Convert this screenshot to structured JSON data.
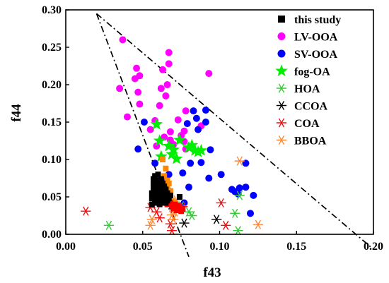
{
  "chart_data": {
    "type": "scatter",
    "title": "",
    "xlabel": "f43",
    "ylabel": "f44",
    "xlim": [
      0.0,
      0.2
    ],
    "ylim": [
      0.0,
      0.3
    ],
    "x_ticks": [
      "0.00",
      "0.05",
      "0.10",
      "0.15",
      "0.20"
    ],
    "y_ticks": [
      "0.00",
      "0.05",
      "0.10",
      "0.15",
      "0.20",
      "0.25",
      "0.30"
    ],
    "x_tick_values": [
      0.0,
      0.05,
      0.1,
      0.15,
      0.2
    ],
    "y_tick_values": [
      0.0,
      0.05,
      0.1,
      0.15,
      0.2,
      0.25,
      0.3
    ],
    "grid": false,
    "legend_position": "top-right",
    "triangle": {
      "apex": [
        0.02,
        0.295
      ],
      "left_end": [
        0.08,
        -0.03
      ],
      "right_end": [
        0.2,
        -0.02
      ]
    },
    "series": [
      {
        "name": "this study",
        "marker": "square",
        "color": "#000000",
        "points": [
          [
            0.056,
            0.04
          ],
          [
            0.056,
            0.048
          ],
          [
            0.056,
            0.055
          ],
          [
            0.057,
            0.062
          ],
          [
            0.057,
            0.068
          ],
          [
            0.057,
            0.074
          ],
          [
            0.058,
            0.045
          ],
          [
            0.058,
            0.052
          ],
          [
            0.058,
            0.06
          ],
          [
            0.058,
            0.078
          ],
          [
            0.059,
            0.042
          ],
          [
            0.059,
            0.05
          ],
          [
            0.059,
            0.057
          ],
          [
            0.059,
            0.065
          ],
          [
            0.059,
            0.072
          ],
          [
            0.06,
            0.046
          ],
          [
            0.06,
            0.054
          ],
          [
            0.06,
            0.061
          ],
          [
            0.06,
            0.069
          ],
          [
            0.06,
            0.08
          ],
          [
            0.061,
            0.04
          ],
          [
            0.061,
            0.048
          ],
          [
            0.061,
            0.058
          ],
          [
            0.061,
            0.066
          ],
          [
            0.062,
            0.044
          ],
          [
            0.062,
            0.052
          ],
          [
            0.062,
            0.062
          ],
          [
            0.062,
            0.074
          ],
          [
            0.063,
            0.042
          ],
          [
            0.063,
            0.05
          ],
          [
            0.063,
            0.058
          ],
          [
            0.063,
            0.068
          ],
          [
            0.064,
            0.046
          ],
          [
            0.064,
            0.054
          ],
          [
            0.064,
            0.064
          ],
          [
            0.065,
            0.042
          ],
          [
            0.065,
            0.05
          ],
          [
            0.065,
            0.06
          ],
          [
            0.066,
            0.045
          ],
          [
            0.066,
            0.055
          ],
          [
            0.067,
            0.048
          ],
          [
            0.068,
            0.052
          ],
          [
            0.074,
            0.05
          ]
        ]
      },
      {
        "name": "LV-OOA",
        "marker": "circle",
        "color": "#ff00ff",
        "points": [
          [
            0.035,
            0.195
          ],
          [
            0.037,
            0.26
          ],
          [
            0.04,
            0.157
          ],
          [
            0.045,
            0.208
          ],
          [
            0.046,
            0.222
          ],
          [
            0.047,
            0.19
          ],
          [
            0.048,
            0.212
          ],
          [
            0.048,
            0.174
          ],
          [
            0.055,
            0.14
          ],
          [
            0.058,
            0.152
          ],
          [
            0.059,
            0.118
          ],
          [
            0.061,
            0.172
          ],
          [
            0.062,
            0.195
          ],
          [
            0.063,
            0.22
          ],
          [
            0.064,
            0.13
          ],
          [
            0.065,
            0.185
          ],
          [
            0.066,
            0.2
          ],
          [
            0.067,
            0.243
          ],
          [
            0.067,
            0.228
          ],
          [
            0.068,
            0.137
          ],
          [
            0.068,
            0.126
          ],
          [
            0.07,
            0.12
          ],
          [
            0.073,
            0.153
          ],
          [
            0.075,
            0.132
          ],
          [
            0.077,
            0.124
          ],
          [
            0.078,
            0.114
          ],
          [
            0.077,
            0.138
          ],
          [
            0.078,
            0.165
          ],
          [
            0.088,
            0.145
          ],
          [
            0.093,
            0.215
          ]
        ]
      },
      {
        "name": "SV-OOA",
        "marker": "circle",
        "color": "#0000ff",
        "points": [
          [
            0.047,
            0.114
          ],
          [
            0.051,
            0.15
          ],
          [
            0.058,
            0.095
          ],
          [
            0.064,
            0.07
          ],
          [
            0.066,
            0.06
          ],
          [
            0.067,
            0.08
          ],
          [
            0.076,
            0.082
          ],
          [
            0.077,
            0.042
          ],
          [
            0.079,
            0.148
          ],
          [
            0.08,
            0.063
          ],
          [
            0.081,
            0.095
          ],
          [
            0.083,
            0.165
          ],
          [
            0.085,
            0.155
          ],
          [
            0.086,
            0.14
          ],
          [
            0.088,
            0.096
          ],
          [
            0.091,
            0.166
          ],
          [
            0.091,
            0.15
          ],
          [
            0.093,
            0.075
          ],
          [
            0.094,
            0.113
          ],
          [
            0.101,
            0.08
          ],
          [
            0.108,
            0.06
          ],
          [
            0.11,
            0.057
          ],
          [
            0.112,
            0.054
          ],
          [
            0.113,
            0.062
          ],
          [
            0.117,
            0.095
          ],
          [
            0.117,
            0.063
          ],
          [
            0.12,
            0.028
          ],
          [
            0.122,
            0.052
          ]
        ]
      },
      {
        "name": "fog-OA",
        "marker": "star",
        "color": "#00ee00",
        "points": [
          [
            0.059,
            0.147
          ],
          [
            0.061,
            0.125
          ],
          [
            0.062,
            0.104
          ],
          [
            0.067,
            0.118
          ],
          [
            0.069,
            0.107
          ],
          [
            0.07,
            0.113
          ],
          [
            0.072,
            0.101
          ],
          [
            0.074,
            0.126
          ],
          [
            0.08,
            0.116
          ],
          [
            0.082,
            0.119
          ],
          [
            0.084,
            0.112
          ],
          [
            0.086,
            0.11
          ],
          [
            0.088,
            0.112
          ]
        ]
      },
      {
        "name": "HOA",
        "marker": "asterisk",
        "color": "#33cc33",
        "points": [
          [
            0.028,
            0.012
          ],
          [
            0.065,
            0.052
          ],
          [
            0.075,
            0.038
          ],
          [
            0.08,
            0.03
          ],
          [
            0.082,
            0.025
          ],
          [
            0.11,
            0.028
          ],
          [
            0.112,
            0.005
          ],
          [
            0.113,
            0.052
          ]
        ]
      },
      {
        "name": "CCOA",
        "marker": "asterisk",
        "color": "#000000",
        "points": [
          [
            0.07,
            0.034
          ],
          [
            0.077,
            0.015
          ],
          [
            0.098,
            0.02
          ]
        ]
      },
      {
        "name": "COA",
        "marker": "asterisk",
        "color": "#ee1111",
        "points": [
          [
            0.013,
            0.031
          ],
          [
            0.055,
            0.036
          ],
          [
            0.059,
            0.03
          ],
          [
            0.061,
            0.022
          ],
          [
            0.068,
            0.014
          ],
          [
            0.069,
            0.005
          ],
          [
            0.076,
            0.037
          ],
          [
            0.101,
            0.042
          ],
          [
            0.104,
            0.012
          ]
        ]
      },
      {
        "name": "BBOA",
        "marker": "asterisk",
        "color": "#ff8833",
        "points": [
          [
            0.055,
            0.012
          ],
          [
            0.056,
            0.02
          ],
          [
            0.069,
            0.026
          ],
          [
            0.07,
            0.02
          ],
          [
            0.071,
            0.03
          ],
          [
            0.072,
            0.046
          ],
          [
            0.113,
            0.098
          ],
          [
            0.125,
            0.013
          ]
        ]
      }
    ],
    "orange_cluster": {
      "color": "#ff8800",
      "points": [
        [
          0.063,
          0.1
        ],
        [
          0.065,
          0.088
        ],
        [
          0.064,
          0.078
        ],
        [
          0.066,
          0.072
        ],
        [
          0.067,
          0.068
        ],
        [
          0.066,
          0.062
        ],
        [
          0.068,
          0.058
        ],
        [
          0.068,
          0.05
        ],
        [
          0.069,
          0.045
        ],
        [
          0.067,
          0.04
        ],
        [
          0.07,
          0.038
        ],
        [
          0.071,
          0.043
        ],
        [
          0.072,
          0.036
        ]
      ]
    },
    "red_cluster": {
      "color": "#ff0000",
      "points": [
        [
          0.066,
          0.04
        ],
        [
          0.068,
          0.042
        ],
        [
          0.069,
          0.038
        ],
        [
          0.07,
          0.035
        ],
        [
          0.071,
          0.04
        ],
        [
          0.072,
          0.032
        ],
        [
          0.073,
          0.038
        ],
        [
          0.074,
          0.035
        ],
        [
          0.075,
          0.031
        ],
        [
          0.076,
          0.034
        ]
      ]
    }
  }
}
